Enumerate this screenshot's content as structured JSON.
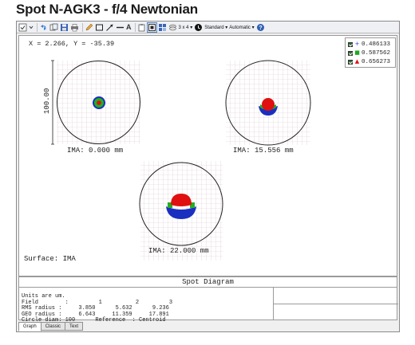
{
  "window": {
    "title": "Spot N-AGK3 - f/4 Newtonian"
  },
  "toolbar": {
    "layout_label": "3 x 4",
    "layout_caret": "▾",
    "standard_label": "Standard",
    "standard_caret": "▾",
    "automatic_label": "Automatic",
    "automatic_caret": "▾",
    "help_label": "?",
    "text_tool_label": "A",
    "icons": [
      "settings-icon",
      "refresh-icon",
      "copy-icon",
      "save-icon",
      "print-icon",
      "pencil-icon",
      "rectangle-icon",
      "arrow-icon",
      "line-icon",
      "text-icon",
      "clipboard-icon",
      "zoom-fit-icon",
      "grid-icon",
      "layers-icon",
      "layout-icon",
      "clock-icon",
      "help-icon"
    ]
  },
  "plot": {
    "cursor_readout": "X = 2.266, Y = -35.39",
    "scale_bar_label": "100.00",
    "surface_label": "Surface: IMA",
    "spots": [
      {
        "label": "IMA: 0.000 mm"
      },
      {
        "label": "IMA: 15.556 mm"
      },
      {
        "label": "IMA: 22.000 mm"
      }
    ]
  },
  "legend": {
    "items": [
      {
        "marker": "+",
        "color": "#1f3fd0",
        "value": "0.486133"
      },
      {
        "marker": "■",
        "color": "#1fa81f",
        "value": "0.587562"
      },
      {
        "marker": "▲",
        "color": "#e01010",
        "value": "0.656273"
      }
    ]
  },
  "footer": {
    "title": "Spot Diagram",
    "lines": [
      "Units are um.",
      "Field        :         1          2         3",
      "RMS radius :     3.850      5.632      9.236",
      "GEO radius :     6.643     11.359     17.891",
      "Circle diam: 100      Reference  : Centroid"
    ]
  },
  "tabs": [
    {
      "label": "Graph",
      "active": true
    },
    {
      "label": "Classic",
      "active": false
    },
    {
      "label": "Text",
      "active": false
    }
  ]
}
